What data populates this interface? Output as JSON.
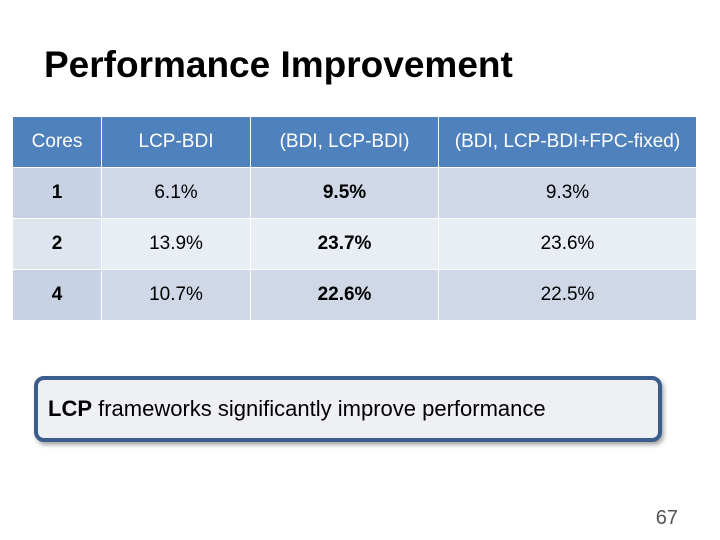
{
  "slide": {
    "title": "Performance Improvement",
    "page_number": "67"
  },
  "table": {
    "headers": [
      "Cores",
      "LCP-BDI",
      "(BDI, LCP-BDI)",
      "(BDI, LCP-BDI+FPC-fixed)"
    ],
    "rows": [
      [
        "1",
        "6.1%",
        "9.5%",
        "9.3%"
      ],
      [
        "2",
        "13.9%",
        "23.7%",
        "23.6%"
      ],
      [
        "4",
        "10.7%",
        "22.6%",
        "22.5%"
      ]
    ]
  },
  "callout": {
    "lead": "LCP",
    "rest": " frameworks significantly improve performance"
  },
  "colors": {
    "header_bg": "#4f81bd",
    "row_odd_bg": "#d0d8e8",
    "row_even_bg": "#e9edf4",
    "callout_border": "#3a5d8c"
  }
}
